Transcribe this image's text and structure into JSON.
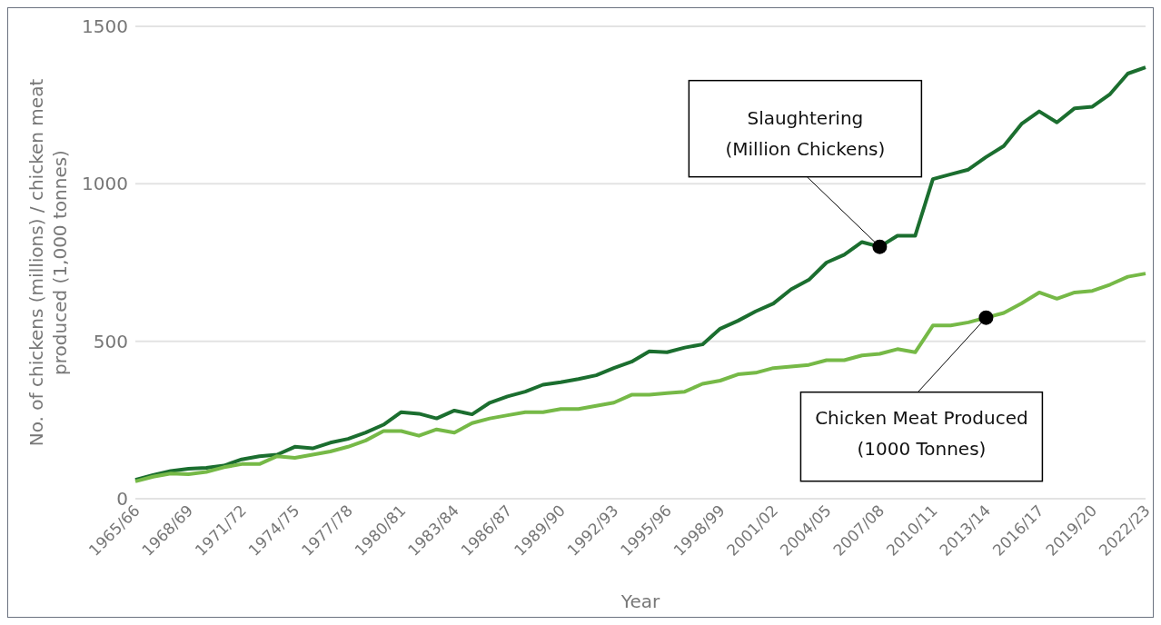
{
  "chart_data": {
    "type": "line",
    "xlabel": "Year",
    "ylabel": "No. of chickens (millions) / chicken meat produced (1,000 tonnes)",
    "categories": [
      "1965/66",
      null,
      null,
      "1968/69",
      null,
      null,
      "1971/72",
      null,
      null,
      "1974/75",
      null,
      null,
      "1977/78",
      null,
      null,
      "1980/81",
      null,
      null,
      "1983/84",
      null,
      null,
      "1986/87",
      null,
      null,
      "1989/90",
      null,
      null,
      "1992/93",
      null,
      null,
      "1995/96",
      null,
      null,
      "1998/99",
      null,
      null,
      "2001/02",
      null,
      null,
      "2004/05",
      null,
      null,
      "2007/08",
      null,
      null,
      "2010/11",
      null,
      null,
      "2013/14",
      null,
      null,
      "2016/17",
      null,
      null,
      "2019/20",
      null,
      null,
      "2022/23"
    ],
    "series": [
      {
        "color": "#1b6e2f",
        "values": [
          60,
          75,
          88,
          95,
          98,
          105,
          125,
          135,
          140,
          165,
          160,
          178,
          190,
          210,
          235,
          275,
          270,
          255,
          280,
          268,
          305,
          325,
          340,
          362,
          370,
          380,
          392,
          415,
          435,
          468,
          465,
          480,
          490,
          540,
          565,
          595,
          620,
          665,
          695,
          750,
          775,
          815,
          800,
          835,
          835,
          1015,
          1030,
          1045,
          1085,
          1120,
          1190,
          1230,
          1195,
          1240,
          1245,
          1285,
          1350,
          1370
        ]
      },
      {
        "color": "#76b947",
        "values": [
          55,
          70,
          80,
          78,
          85,
          100,
          110,
          110,
          135,
          130,
          140,
          150,
          165,
          185,
          215,
          215,
          200,
          220,
          210,
          240,
          255,
          265,
          275,
          275,
          285,
          285,
          295,
          305,
          330,
          330,
          335,
          340,
          365,
          375,
          395,
          400,
          415,
          420,
          425,
          440,
          440,
          455,
          460,
          475,
          465,
          550,
          550,
          560,
          575,
          590,
          620,
          655,
          635,
          655,
          660,
          680,
          705,
          715
        ]
      }
    ],
    "ylim": [
      0,
      1500
    ],
    "yticks": [
      0,
      500,
      1000,
      1500
    ],
    "grid": "y",
    "annotations": [
      {
        "text": "Slaughtering\n(Million Chickens)",
        "x": "2007/08",
        "y": 800
      },
      {
        "text": "Chicken Meat Produced\n(1000 Tonnes)",
        "x": "2013/14",
        "y": 575
      }
    ]
  }
}
